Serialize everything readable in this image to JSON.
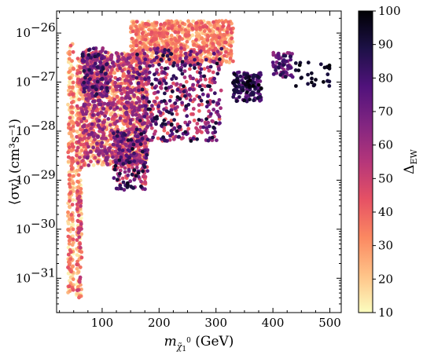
{
  "chart_data": {
    "type": "scatter",
    "xlabel": "m_χ̃₁⁰ (GeV)",
    "xlabel_parts": {
      "m": "m",
      "sub": "χ̃",
      "sub2": "1",
      "sup": "0",
      "unit": " (GeV)"
    },
    "ylabel": "⟨σv⟩ (cm³s⁻¹)",
    "xlim": [
      20,
      520
    ],
    "ylim_log10": [
      -31.7,
      -25.55
    ],
    "y_scale": "log",
    "x_ticks": [
      100,
      200,
      300,
      400,
      500
    ],
    "y_ticks": [
      {
        "mantissa": "10",
        "exp": "−26",
        "log": -26
      },
      {
        "mantissa": "10",
        "exp": "−27",
        "log": -27
      },
      {
        "mantissa": "10",
        "exp": "−28",
        "log": -28
      },
      {
        "mantissa": "10",
        "exp": "−29",
        "log": -29
      },
      {
        "mantissa": "10",
        "exp": "−30",
        "log": -30
      },
      {
        "mantissa": "10",
        "exp": "−31",
        "log": -31
      }
    ],
    "colorbar": {
      "label": "Δ",
      "label_sub": "EW",
      "range": [
        10,
        100
      ],
      "ticks": [
        10,
        20,
        30,
        40,
        50,
        60,
        70,
        80,
        90,
        100
      ],
      "colormap": "magma_r",
      "stops": [
        "#fcfdbf",
        "#fec287",
        "#fb8861",
        "#e65164",
        "#b5367a",
        "#812581",
        "#50127b",
        "#1d1147",
        "#000004"
      ]
    },
    "regions": [
      {
        "name": "low-mass-strip-1",
        "x": [
          40,
          50
        ],
        "logy": [
          -31.3,
          -26.2
        ],
        "delta": [
          10,
          45
        ],
        "n": 260
      },
      {
        "name": "low-mass-strip-2",
        "x": [
          55,
          64
        ],
        "logy": [
          -31.4,
          -26.5
        ],
        "delta": [
          10,
          55
        ],
        "n": 260
      },
      {
        "name": "main-band",
        "x": [
          64,
          180
        ],
        "logy": [
          -28.7,
          -26.4
        ],
        "delta": [
          12,
          70
        ],
        "n": 1500
      },
      {
        "name": "upper-branch",
        "x": [
          150,
          330
        ],
        "logy": [
          -26.6,
          -25.75
        ],
        "delta": [
          15,
          45
        ],
        "n": 900
      },
      {
        "name": "funnel-left",
        "x": [
          65,
          110
        ],
        "logy": [
          -27.3,
          -26.3
        ],
        "delta": [
          40,
          90
        ],
        "n": 180
      },
      {
        "name": "lower-tail",
        "x": [
          120,
          180
        ],
        "logy": [
          -29.2,
          -28.0
        ],
        "delta": [
          40,
          95
        ],
        "n": 220
      },
      {
        "name": "mid-spread",
        "x": [
          160,
          310
        ],
        "logy": [
          -28.2,
          -26.3
        ],
        "delta": [
          40,
          95
        ],
        "n": 500
      },
      {
        "name": "cluster-350",
        "x": [
          330,
          380
        ],
        "logy": [
          -27.4,
          -26.8
        ],
        "delta": [
          70,
          100
        ],
        "n": 160
      },
      {
        "name": "cluster-415",
        "x": [
          400,
          435
        ],
        "logy": [
          -26.9,
          -26.4
        ],
        "delta": [
          60,
          90
        ],
        "n": 70
      },
      {
        "name": "high-mass-sparse",
        "x": [
          440,
          500
        ],
        "logy": [
          -27.1,
          -26.6
        ],
        "delta": [
          90,
          100
        ],
        "n": 30
      }
    ]
  }
}
